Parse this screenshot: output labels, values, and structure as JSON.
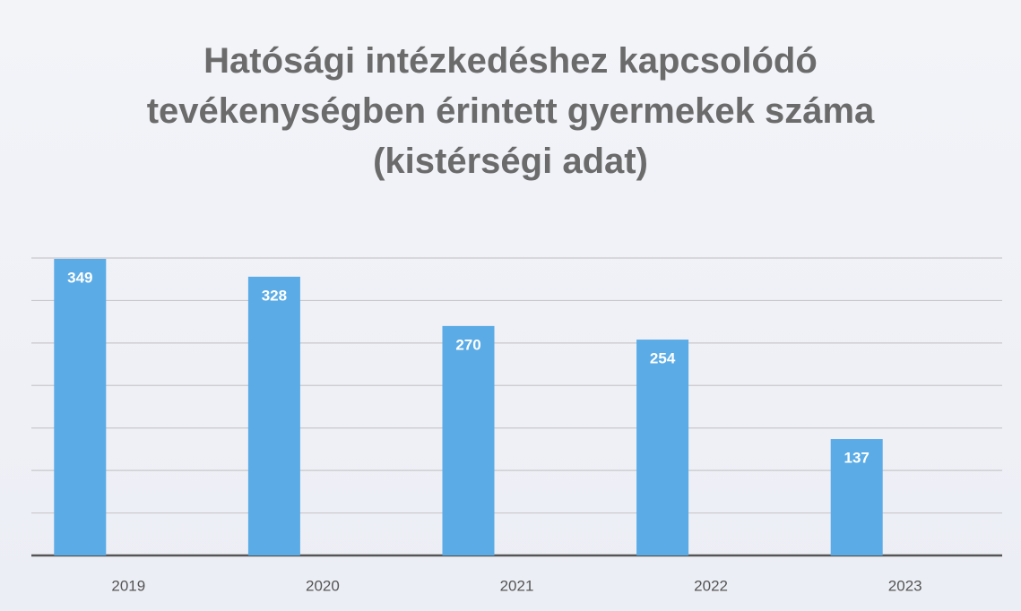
{
  "chart_data": {
    "type": "bar",
    "title": "Hatósági intézkedéshez kapcsolódó\ntevékenységben érintett gyermekek száma\n(kistérségi adat)",
    "categories": [
      "2019",
      "2020",
      "2021",
      "2022",
      "2023"
    ],
    "values": [
      349,
      328,
      270,
      254,
      137
    ],
    "color": "#5aabe6",
    "ylim": [
      0,
      350
    ],
    "yticks": [
      0,
      50,
      100,
      150,
      200,
      250,
      300,
      350
    ],
    "grid": true
  }
}
